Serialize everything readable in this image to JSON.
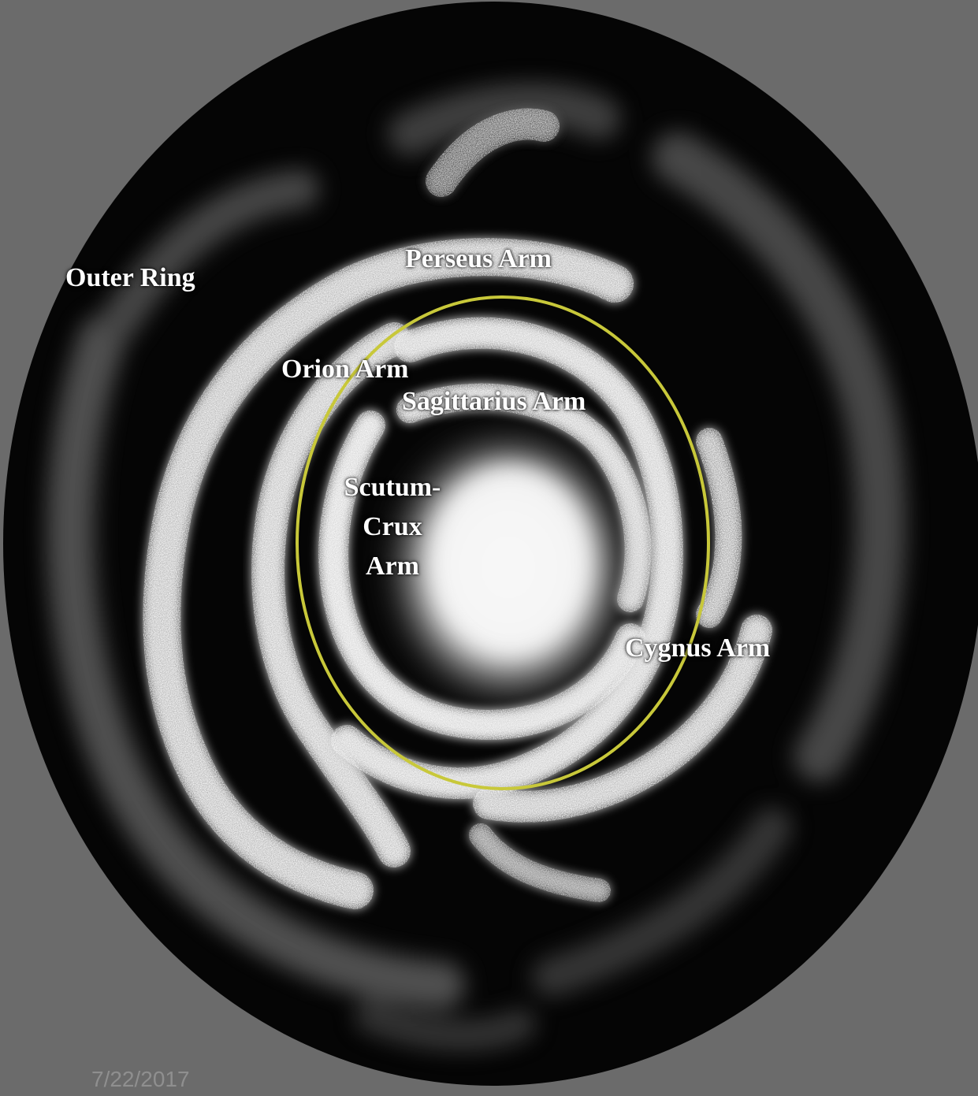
{
  "labels": {
    "outer_ring": "Outer Ring",
    "perseus_arm": "Perseus Arm",
    "orion_arm": "Orion Arm",
    "sagittarius_arm": "Sagittarius Arm",
    "scutum_crux_arm": [
      "Scutum-",
      "Crux",
      "Arm"
    ],
    "cygnus_arm": "Cygnus Arm"
  },
  "date": "7/22/2017",
  "colors": {
    "background": "#6b6b6b",
    "space": "#050505",
    "arms": "#d9d9d9",
    "core": "#ffffff",
    "highlight_ellipse": "#c8c83a",
    "label_text": "#ffffff",
    "date_text": "#8f8f8f"
  }
}
